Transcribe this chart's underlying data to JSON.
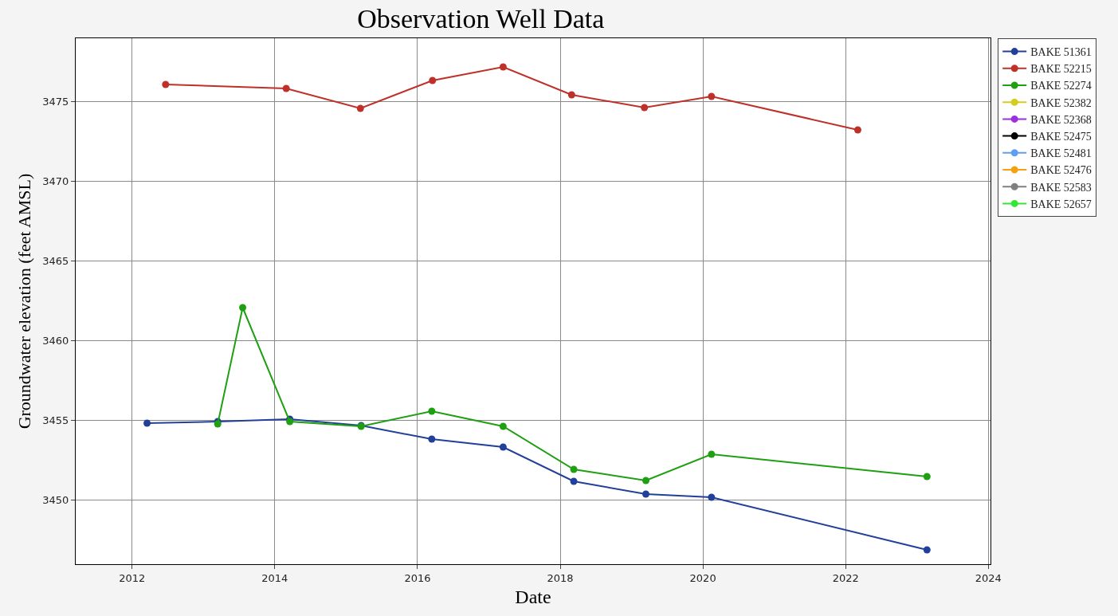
{
  "chart_data": {
    "type": "line",
    "title": "Observation Well Data",
    "xlabel": "Date",
    "ylabel": "Groundwater elevation (feet AMSL)",
    "xlim": [
      2011.21,
      2024.03
    ],
    "xticks": [
      2012,
      2014,
      2016,
      2018,
      2020,
      2022,
      2024
    ],
    "ylim": [
      3445.95,
      3478.95
    ],
    "yticks": [
      3450,
      3455,
      3460,
      3465,
      3470,
      3475
    ],
    "grid": true,
    "legend": "right",
    "marker": "circle",
    "line_style": "solid",
    "series": [
      {
        "name": "BAKE 51361",
        "color": "#22409a",
        "x": [
          2012.21,
          2013.2,
          2014.21,
          2015.21,
          2016.2,
          2017.2,
          2018.19,
          2019.2,
          2020.12,
          2023.14
        ],
        "values": [
          3454.8,
          3454.9,
          3455.05,
          3454.65,
          3453.8,
          3453.3,
          3451.15,
          3450.35,
          3450.15,
          3446.85
        ]
      },
      {
        "name": "BAKE 52215",
        "color": "#c0302a",
        "x": [
          2012.47,
          2014.16,
          2015.2,
          2016.21,
          2017.2,
          2018.16,
          2019.18,
          2020.12,
          2022.17
        ],
        "values": [
          3476.05,
          3475.8,
          3474.55,
          3476.3,
          3477.15,
          3475.4,
          3474.6,
          3475.3,
          3473.2
        ]
      },
      {
        "name": "BAKE 52274",
        "color": "#1fa012",
        "x": [
          2013.2,
          2013.55,
          2014.21,
          2015.21,
          2016.2,
          2017.2,
          2018.19,
          2019.2,
          2020.12,
          2023.14
        ],
        "values": [
          3454.75,
          3462.05,
          3454.9,
          3454.6,
          3455.55,
          3454.6,
          3451.9,
          3451.2,
          3452.85,
          3451.45
        ]
      },
      {
        "name": "BAKE 52382",
        "color": "#d4cc1e"
      },
      {
        "name": "BAKE 52368",
        "color": "#9b30e0"
      },
      {
        "name": "BAKE 52475",
        "color": "#000000"
      },
      {
        "name": "BAKE 52481",
        "color": "#5f9ef0"
      },
      {
        "name": "BAKE 52476",
        "color": "#f5a10f"
      },
      {
        "name": "BAKE 52583",
        "color": "#7f7f7f"
      },
      {
        "name": "BAKE 52657",
        "color": "#33e633"
      }
    ]
  }
}
